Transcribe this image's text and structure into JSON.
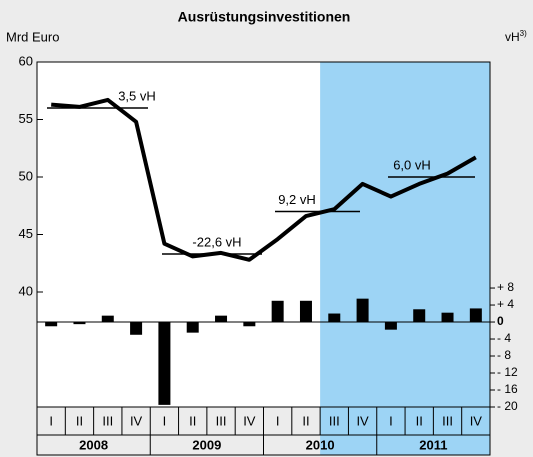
{
  "chart_data": {
    "type": "line-bar",
    "title": "Ausrüstungsinvestitionen",
    "y_label": "Mrd Euro",
    "y2_label": "vH",
    "y2_label_note": "3)",
    "categories": [
      "I",
      "II",
      "III",
      "IV",
      "I",
      "II",
      "III",
      "IV",
      "I",
      "II",
      "III",
      "IV",
      "I",
      "II",
      "III",
      "IV"
    ],
    "years": [
      "2008",
      "2009",
      "2010",
      "2011"
    ],
    "series": [
      {
        "name": "Mrd Euro",
        "color": "#000000",
        "axis": "y",
        "kind": "line",
        "values": [
          56.3,
          56.1,
          56.7,
          54.8,
          44.2,
          43.1,
          43.4,
          42.8,
          44.6,
          46.6,
          47.2,
          49.4,
          48.3,
          49.4,
          50.3,
          51.7
        ]
      },
      {
        "name": "vH",
        "color": "#000000",
        "axis": "y2",
        "kind": "bar",
        "values": [
          -1,
          -0.5,
          1.5,
          -3,
          -19.5,
          -2.5,
          1.5,
          -1,
          5,
          5,
          2,
          5.5,
          -1.8,
          3,
          2.2,
          3.2
        ]
      }
    ],
    "annual_averages": [
      {
        "label": "3,5 vH",
        "value": 56.0
      },
      {
        "label": "-22,6 vH",
        "value": 43.3
      },
      {
        "label": "9,2 vH",
        "value": 47.0
      },
      {
        "label": "6,0 vH",
        "value": 50.0
      }
    ],
    "ylim": [
      30,
      60
    ],
    "yticks": [
      40,
      45,
      50,
      55,
      60
    ],
    "y2lim": [
      -20,
      61.2
    ],
    "y2ticks": [
      {
        "value": 8,
        "label": "+ 8"
      },
      {
        "value": 4,
        "label": "+ 4"
      },
      {
        "value": 0,
        "label": "0"
      },
      {
        "value": -4,
        "label": "- 4"
      },
      {
        "value": -8,
        "label": "- 8"
      },
      {
        "value": -12,
        "label": "- 12"
      },
      {
        "value": -16,
        "label": "- 16"
      },
      {
        "value": -20,
        "label": "- 20"
      }
    ],
    "shade": {
      "from": 10,
      "color": "#9dd4f5"
    },
    "background": "#ececec"
  }
}
